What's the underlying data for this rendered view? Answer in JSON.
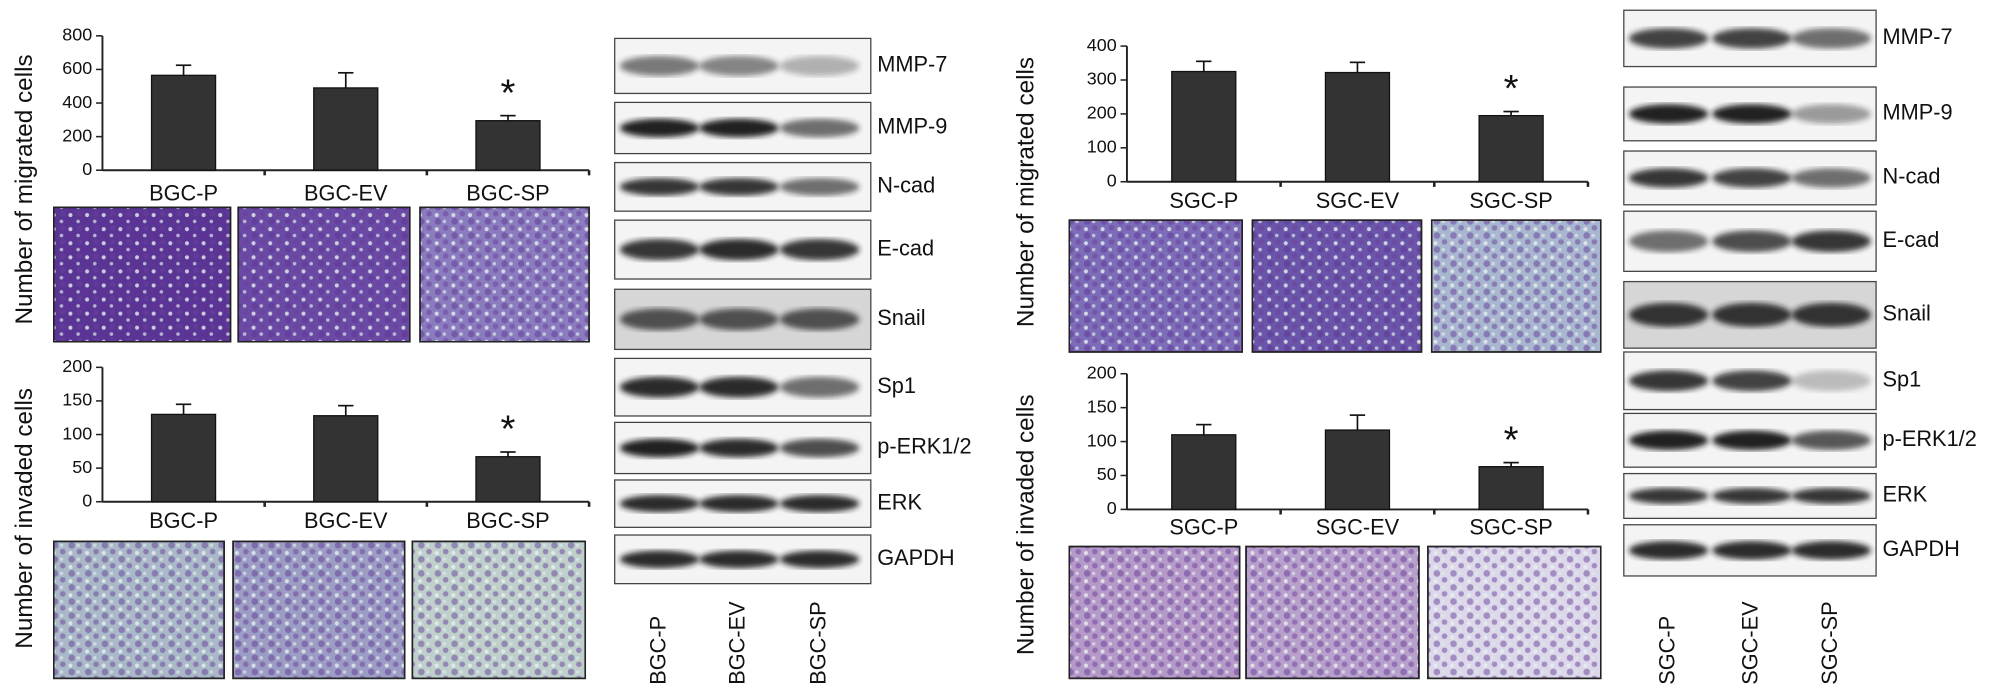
{
  "chart_data": [
    {
      "type": "bar",
      "ylabel": "Number of migrated cells",
      "categories": [
        "BGC-P",
        "BGC-EV",
        "BGC-SP"
      ],
      "values": [
        565,
        490,
        295
      ],
      "errors": [
        60,
        90,
        30
      ],
      "color": "#333333",
      "ylim": [
        0,
        800
      ],
      "yticks": [
        0,
        200,
        400,
        600,
        800
      ],
      "annotation": {
        "text": "*",
        "category": "BGC-SP"
      }
    },
    {
      "type": "bar",
      "ylabel": "Number of invaded cells",
      "categories": [
        "BGC-P",
        "BGC-EV",
        "BGC-SP"
      ],
      "values": [
        130,
        128,
        67
      ],
      "errors": [
        15,
        15,
        7
      ],
      "color": "#333333",
      "ylim": [
        0,
        200
      ],
      "yticks": [
        0,
        50,
        100,
        150,
        200
      ],
      "annotation": {
        "text": "*",
        "category": "BGC-SP"
      }
    },
    {
      "type": "bar",
      "ylabel": "Number of migrated cells",
      "categories": [
        "SGC-P",
        "SGC-EV",
        "SGC-SP"
      ],
      "values": [
        325,
        322,
        195
      ],
      "errors": [
        30,
        30,
        12
      ],
      "color": "#333333",
      "ylim": [
        0,
        400
      ],
      "yticks": [
        0,
        100,
        200,
        300,
        400
      ],
      "annotation": {
        "text": "*",
        "category": "SGC-SP"
      }
    },
    {
      "type": "bar",
      "ylabel": "Number of invaded cells",
      "categories": [
        "SGC-P",
        "SGC-EV",
        "SGC-SP"
      ],
      "values": [
        110,
        117,
        63
      ],
      "errors": [
        15,
        22,
        6
      ],
      "color": "#333333",
      "ylim": [
        0,
        200
      ],
      "yticks": [
        0,
        50,
        100,
        150,
        200
      ],
      "annotation": {
        "text": "*",
        "category": "SGC-SP"
      }
    }
  ],
  "blots": [
    {
      "proteins": [
        "MMP-7",
        "MMP-9",
        "N-cad",
        "E-cad",
        "Snail",
        "Sp1",
        "p-ERK1/2",
        "ERK",
        "GAPDH"
      ],
      "lanes": [
        "BGC-P",
        "BGC-EV",
        "BGC-SP"
      ]
    },
    {
      "proteins": [
        "MMP-7",
        "MMP-9",
        "N-cad",
        "E-cad",
        "Snail",
        "Sp1",
        "p-ERK1/2",
        "ERK",
        "GAPDH"
      ],
      "lanes": [
        "SGC-P",
        "SGC-EV",
        "SGC-SP"
      ]
    }
  ]
}
